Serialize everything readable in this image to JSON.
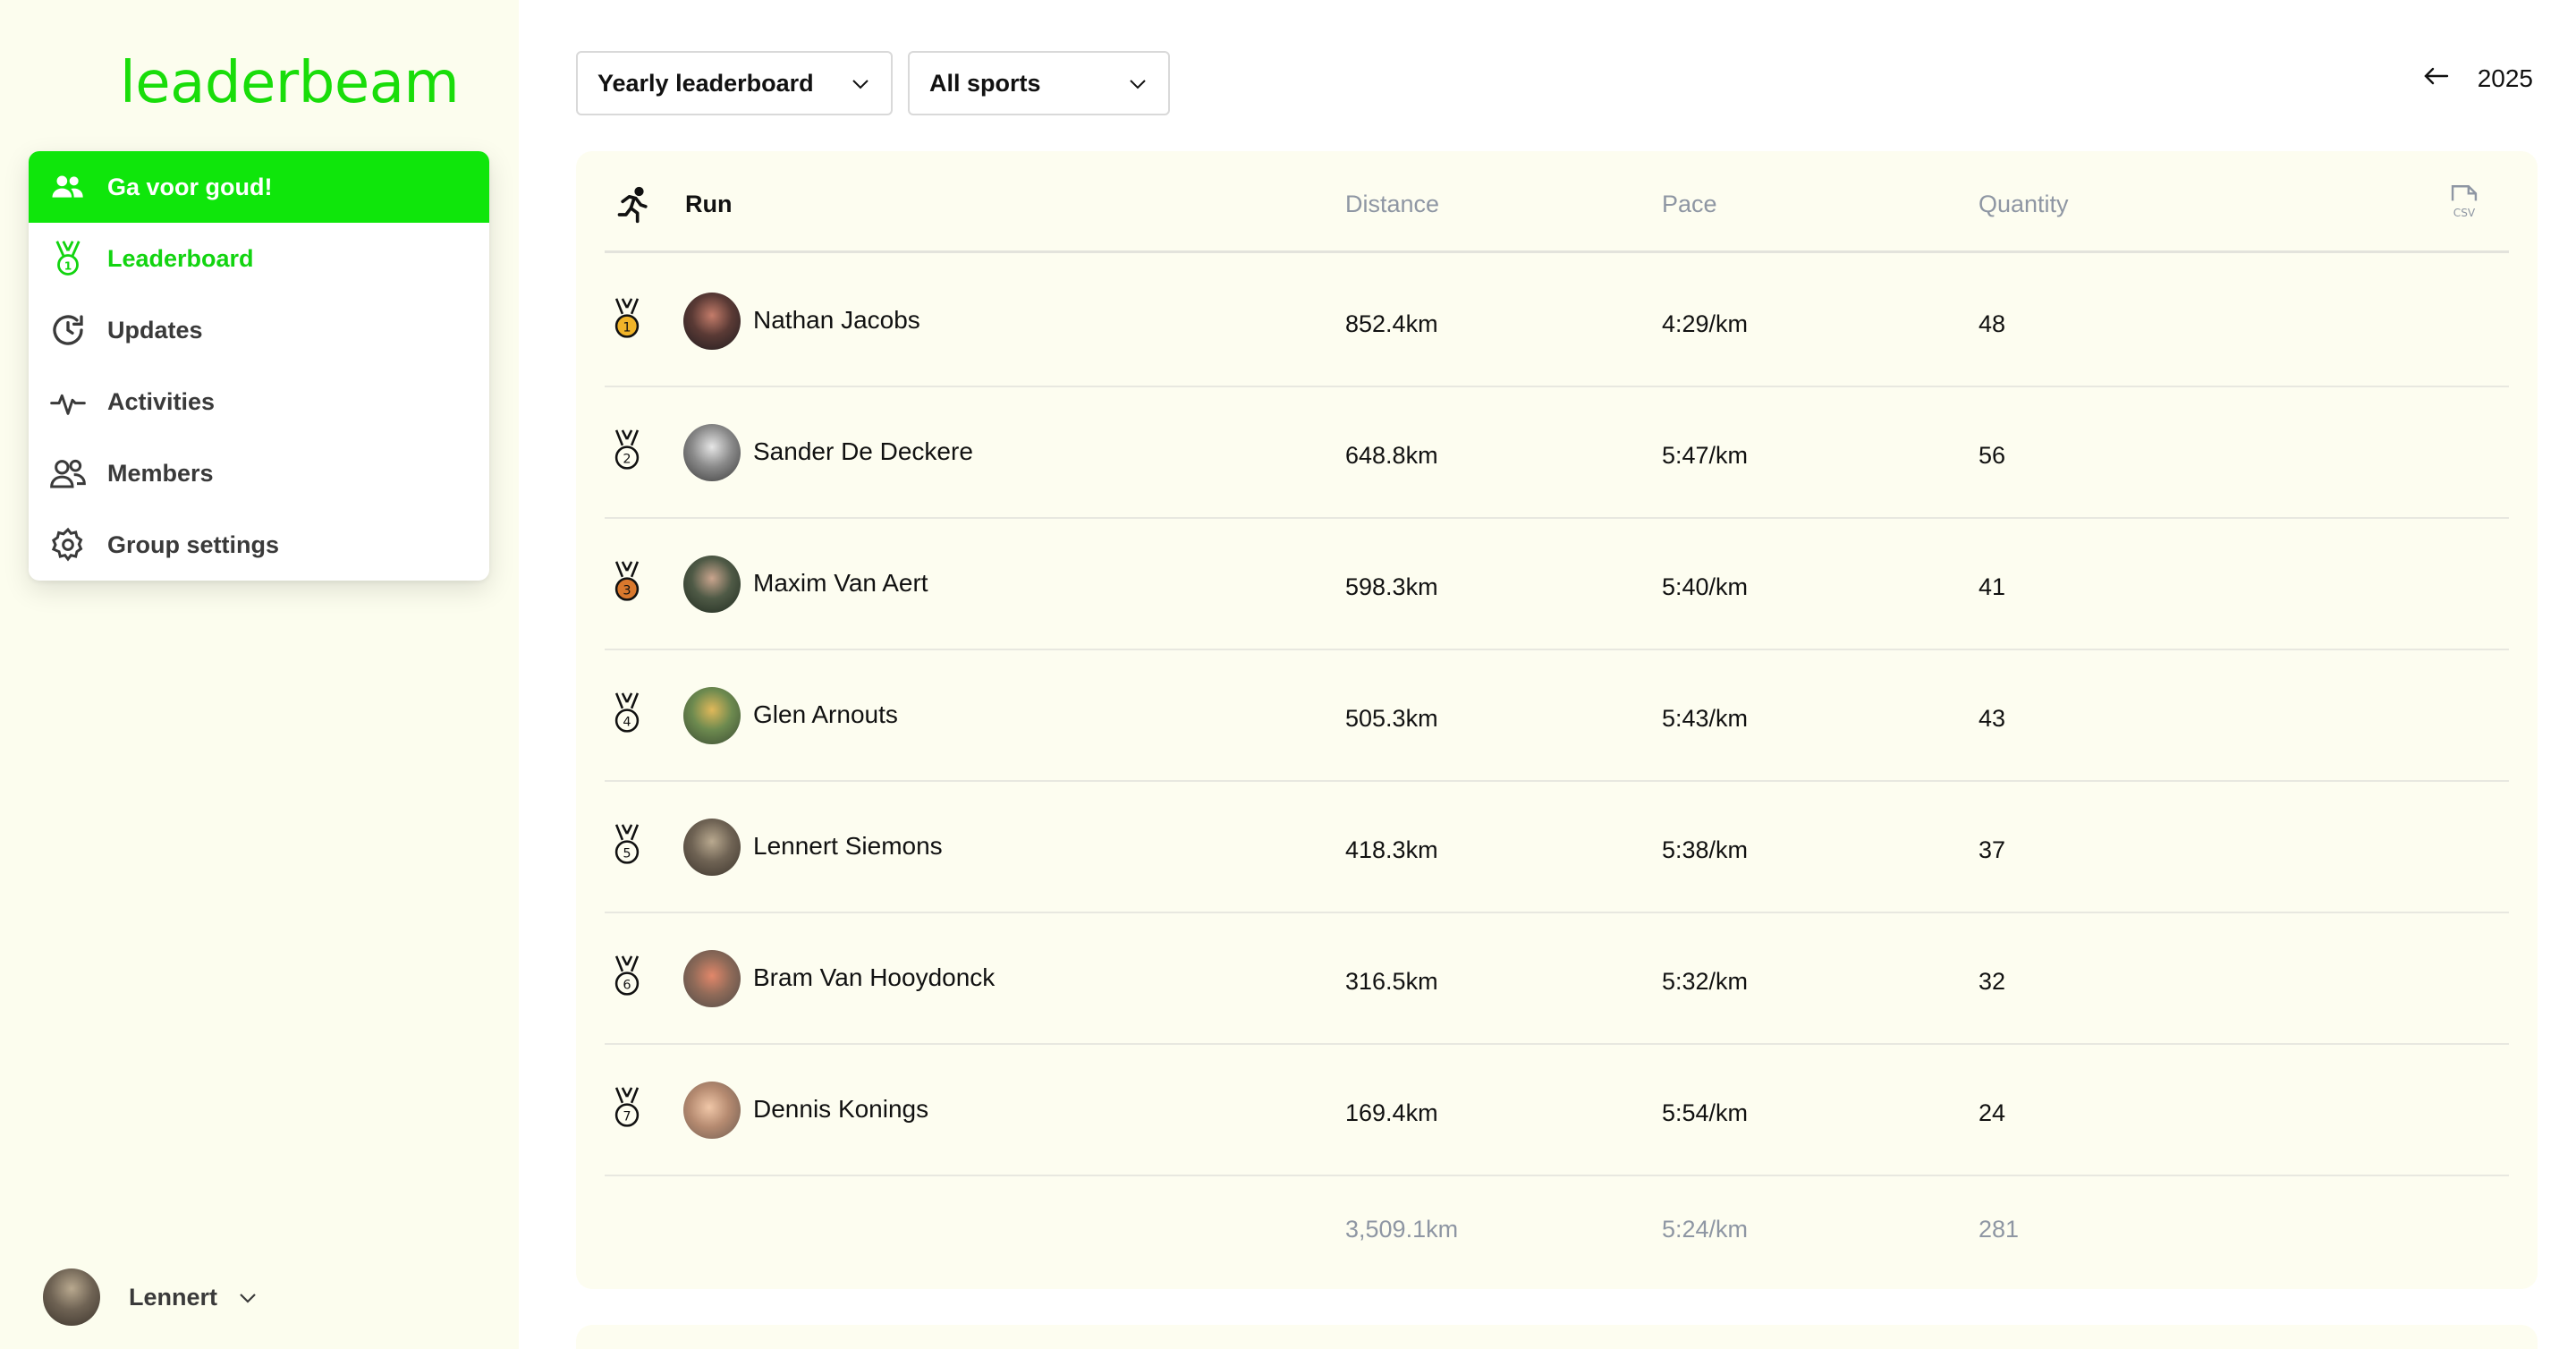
{
  "app": {
    "logo": "leaderbeam"
  },
  "sidebar": {
    "group_name": "Ga voor goud!",
    "items": [
      {
        "label": "Leaderboard",
        "icon": "medal-icon"
      },
      {
        "label": "Updates",
        "icon": "clock-refresh-icon"
      },
      {
        "label": "Activities",
        "icon": "activity-pulse-icon"
      },
      {
        "label": "Members",
        "icon": "users-icon"
      },
      {
        "label": "Group settings",
        "icon": "gear-icon"
      }
    ],
    "user": {
      "name": "Lennert"
    }
  },
  "toolbar": {
    "board_select": "Yearly leaderboard",
    "sport_select": "All sports",
    "year": "2025"
  },
  "colors": {
    "brand": "#12dd0c",
    "card_bg": "#fdfdf0",
    "muted": "#8e96a3",
    "gold": "#f0b429",
    "bronze": "#d9782d"
  },
  "leaderboard": {
    "sport": "Run",
    "columns": {
      "distance": "Distance",
      "pace": "Pace",
      "quantity": "Quantity"
    },
    "csv_label": "CSV",
    "rows": [
      {
        "rank": "1",
        "name": "Nathan Jacobs",
        "distance": "852.4km",
        "pace": "4:29/km",
        "quantity": "48"
      },
      {
        "rank": "2",
        "name": "Sander De Deckere",
        "distance": "648.8km",
        "pace": "5:47/km",
        "quantity": "56"
      },
      {
        "rank": "3",
        "name": "Maxim Van Aert",
        "distance": "598.3km",
        "pace": "5:40/km",
        "quantity": "41"
      },
      {
        "rank": "4",
        "name": "Glen Arnouts",
        "distance": "505.3km",
        "pace": "5:43/km",
        "quantity": "43"
      },
      {
        "rank": "5",
        "name": "Lennert Siemons",
        "distance": "418.3km",
        "pace": "5:38/km",
        "quantity": "37"
      },
      {
        "rank": "6",
        "name": "Bram Van Hooydonck",
        "distance": "316.5km",
        "pace": "5:32/km",
        "quantity": "32"
      },
      {
        "rank": "7",
        "name": "Dennis Konings",
        "distance": "169.4km",
        "pace": "5:54/km",
        "quantity": "24"
      }
    ],
    "totals": {
      "distance": "3,509.1km",
      "pace": "5:24/km",
      "quantity": "281"
    }
  }
}
